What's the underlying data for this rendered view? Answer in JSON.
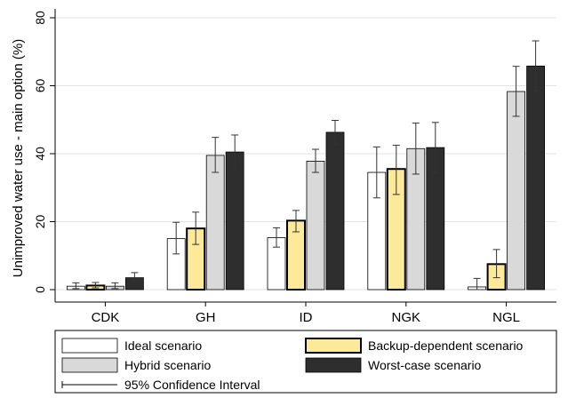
{
  "chart_data": {
    "type": "bar",
    "ylabel": "Unimproved water use - main option (%)",
    "xlabel": "",
    "ylim": [
      0,
      80
    ],
    "yticks": [
      0,
      20,
      40,
      60,
      80
    ],
    "grid": true,
    "categories": [
      "CDK",
      "GH",
      "ID",
      "NGK",
      "NGL"
    ],
    "series": [
      {
        "name": "Ideal scenario",
        "color": "#ffffff",
        "values": [
          1.0,
          15.0,
          15.3,
          34.5,
          0.8
        ],
        "ci_low": [
          0.3,
          10.5,
          12.5,
          27.0,
          0.0
        ],
        "ci_high": [
          2.0,
          19.8,
          18.2,
          42.0,
          3.3
        ]
      },
      {
        "name": "Backup-dependent scenario",
        "color": "#fce99a",
        "values": [
          1.2,
          18.0,
          20.3,
          35.5,
          7.5
        ],
        "ci_low": [
          0.5,
          13.3,
          17.0,
          28.0,
          3.5
        ],
        "ci_high": [
          2.1,
          22.8,
          23.3,
          42.5,
          11.8
        ]
      },
      {
        "name": "Hybrid scenario",
        "color": "#d9d9d9",
        "values": [
          1.0,
          39.5,
          37.8,
          41.5,
          58.3
        ],
        "ci_low": [
          0.3,
          34.5,
          34.5,
          34.0,
          51.0
        ],
        "ci_high": [
          2.0,
          44.8,
          41.3,
          49.0,
          65.7
        ]
      },
      {
        "name": "Worst-case scenario",
        "color": "#2e2e2e",
        "values": [
          3.5,
          40.5,
          46.3,
          41.8,
          65.8
        ],
        "ci_low": [
          2.3,
          35.5,
          42.8,
          34.3,
          58.5
        ],
        "ci_high": [
          5.0,
          45.5,
          49.8,
          49.2,
          73.2
        ]
      }
    ],
    "legend": {
      "placement": "bottom",
      "items": [
        "Ideal scenario",
        "Backup-dependent scenario",
        "Hybrid scenario",
        "Worst-case scenario"
      ],
      "ci_label": "95% Confidence Interval"
    }
  }
}
